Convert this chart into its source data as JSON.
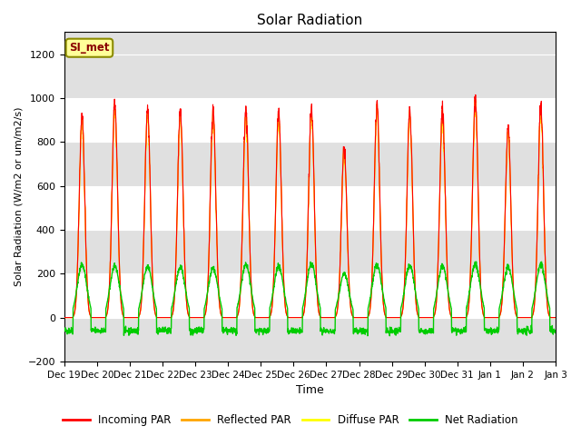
{
  "title": "Solar Radiation",
  "ylabel": "Solar Radiation (W/m2 or um/m2/s)",
  "xlabel": "Time",
  "station_label": "SI_met",
  "ylim": [
    -200,
    1300
  ],
  "yticks": [
    -200,
    0,
    200,
    400,
    600,
    800,
    1000,
    1200
  ],
  "colors": {
    "incoming": "#FF0000",
    "reflected": "#FFA500",
    "diffuse": "#FFFF00",
    "net": "#00CC00"
  },
  "legend_labels": [
    "Incoming PAR",
    "Reflected PAR",
    "Diffuse PAR",
    "Net Radiation"
  ],
  "background_color": "#FFFFFF",
  "plot_bg_color": "#E0E0E0",
  "n_days": 15,
  "start_day": 19,
  "peak_incoming": [
    920,
    980,
    945,
    950,
    940,
    950,
    940,
    960,
    780,
    960,
    950,
    950,
    1000,
    870,
    960
  ],
  "peak_net": [
    240,
    235,
    230,
    230,
    225,
    240,
    235,
    245,
    200,
    240,
    235,
    235,
    245,
    230,
    240
  ],
  "night_net": -60,
  "grid_color": "#FFFFFF",
  "band_color": "#D0D0D0"
}
